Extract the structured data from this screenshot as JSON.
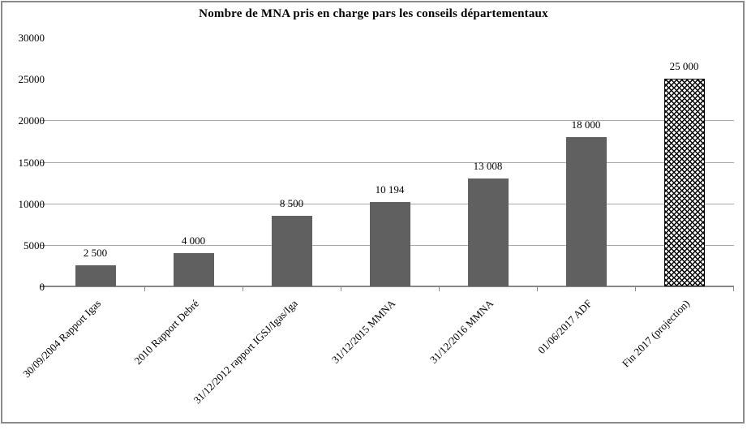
{
  "figure": {
    "background": "#ffffff",
    "border_color": "#8a8a8a"
  },
  "chart_data": {
    "type": "bar",
    "title": "Nombre de MNA pris en charge pars les conseils départementaux",
    "categories": [
      "30/09/2004 Rapport Igas",
      "2010 Rapport Debré",
      "31/12/2012 rapport IGSJ/Igas/Iga",
      "31/12/2015 MMNA",
      "31/12/2016 MMNA",
      "01/06/2017 ADF",
      "Fin 2017 (projection)"
    ],
    "values": [
      2500,
      4000,
      8500,
      10194,
      13008,
      18000,
      25000
    ],
    "value_labels": [
      "2 500",
      "4 000",
      "8 500",
      "10 194",
      "13 008",
      "18 000",
      "25 000"
    ],
    "y_tick_labels": [
      "0",
      "5000",
      "10000",
      "15000",
      "20000",
      "25000",
      "30000"
    ],
    "y_ticks": [
      0,
      5000,
      10000,
      15000,
      20000,
      25000,
      30000
    ],
    "gridline_levels": [
      5000,
      10000,
      15000,
      20000
    ],
    "ylim": [
      0,
      30000
    ],
    "xlabel": "",
    "ylabel": "",
    "legend_position": "none",
    "grid": "horizontal-partial",
    "bar_color": "#606060",
    "last_bar_style": "diamond-hatch-pattern",
    "gridline_color": "#a8a8a8",
    "axis_color": "#888888",
    "text_color": "#000000"
  }
}
